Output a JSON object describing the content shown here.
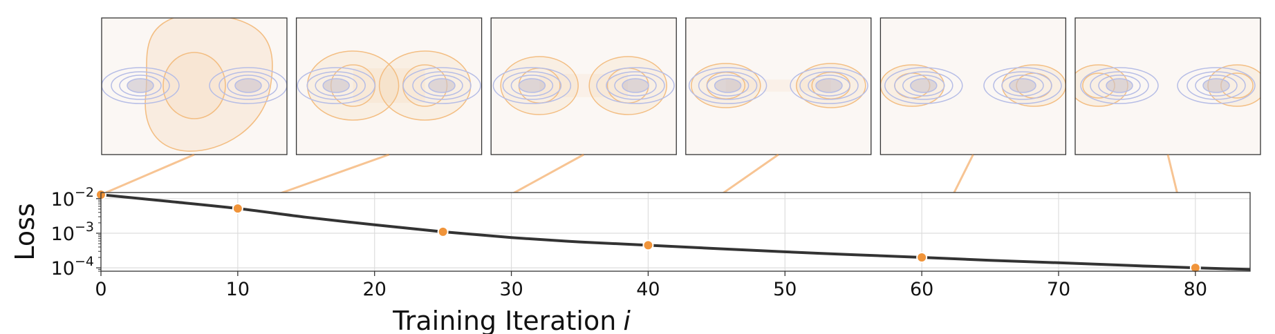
{
  "chart_data": {
    "type": "line",
    "title": "",
    "xlabel_text": "Training Iteration",
    "xlabel_var": "i",
    "ylabel": "Loss",
    "xlim": [
      0,
      84
    ],
    "ylim": [
      8e-05,
      0.015
    ],
    "yscale": "log",
    "x_ticks": [
      0,
      10,
      20,
      30,
      40,
      50,
      60,
      70,
      80
    ],
    "y_ticks": [
      {
        "value": 0.01,
        "base": "10",
        "exp": "−2"
      },
      {
        "value": 0.001,
        "base": "10",
        "exp": "−3"
      },
      {
        "value": 0.0001,
        "base": "10",
        "exp": "−4"
      }
    ],
    "grid": true,
    "series": [
      {
        "name": "loss",
        "color": "#333333",
        "x": [
          0,
          5,
          10,
          15,
          20,
          25,
          30,
          35,
          40,
          45,
          50,
          55,
          60,
          65,
          70,
          75,
          80,
          84
        ],
        "y": [
          0.013,
          0.0083,
          0.0052,
          0.0029,
          0.00175,
          0.0011,
          0.00075,
          0.00056,
          0.00045,
          0.00036,
          0.00029,
          0.00024,
          0.0002,
          0.000165,
          0.00014,
          0.000118,
          0.0001,
          9e-05
        ]
      }
    ],
    "markers": {
      "color": "#f0943a",
      "x": [
        0,
        10,
        25,
        40,
        60,
        80
      ],
      "y": [
        0.013,
        0.0052,
        0.0011,
        0.00045,
        0.0002,
        0.0001
      ]
    },
    "inset_panels": {
      "count": 6,
      "target_color": "#b6bde6",
      "model_color": "#f3be83",
      "snapshot_iterations": [
        0,
        10,
        25,
        40,
        60,
        80
      ]
    }
  }
}
